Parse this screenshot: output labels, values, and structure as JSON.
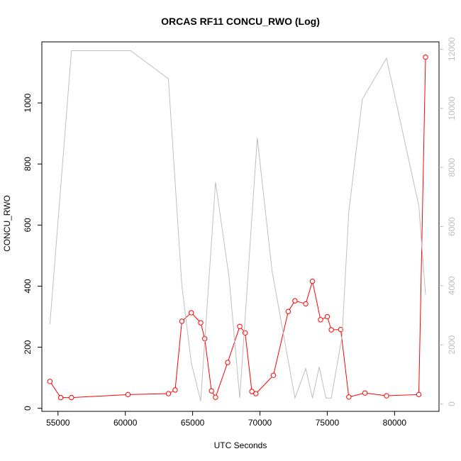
{
  "chart_data": {
    "type": "line",
    "title": "ORCAS RF11 CONCU_RWO (Log)",
    "xlabel": "UTC Seconds",
    "ylabel": "CONCU_RWO",
    "xlim": [
      53800,
      83300
    ],
    "ylim": [
      -10,
      1200
    ],
    "y2lim": [
      -250,
      12250
    ],
    "x_ticks": [
      55000,
      60000,
      65000,
      70000,
      75000,
      80000
    ],
    "y_ticks": [
      0,
      200,
      400,
      600,
      800,
      1000
    ],
    "y2_ticks": [
      0,
      2000,
      4000,
      6000,
      8000,
      10000,
      12000
    ],
    "colors": {
      "primary": "#ff0000",
      "secondary": "#bebebe"
    },
    "series": [
      {
        "axis": "left",
        "color": "#ff0000",
        "points": [
          [
            54400,
            88
          ],
          [
            55200,
            35
          ],
          [
            56000,
            35
          ],
          [
            60200,
            45
          ],
          [
            63200,
            48
          ],
          [
            63700,
            60
          ],
          [
            64200,
            285
          ],
          [
            64900,
            313
          ],
          [
            65600,
            280
          ],
          [
            65900,
            228
          ],
          [
            66400,
            57
          ],
          [
            66700,
            36
          ],
          [
            67600,
            150
          ],
          [
            68500,
            268
          ],
          [
            68900,
            247
          ],
          [
            69400,
            55
          ],
          [
            69700,
            48
          ],
          [
            71000,
            108
          ],
          [
            72100,
            317
          ],
          [
            72600,
            352
          ],
          [
            73400,
            342
          ],
          [
            73900,
            416
          ],
          [
            74500,
            290
          ],
          [
            75000,
            300
          ],
          [
            75300,
            257
          ],
          [
            76000,
            258
          ],
          [
            76600,
            37
          ],
          [
            77800,
            50
          ],
          [
            79400,
            41
          ],
          [
            81800,
            45
          ],
          [
            82300,
            1150
          ]
        ]
      },
      {
        "axis": "right",
        "color": "#bebebe",
        "points": [
          [
            54400,
            2700
          ],
          [
            56000,
            11950
          ],
          [
            60400,
            11950
          ],
          [
            63200,
            11000
          ],
          [
            64200,
            4000
          ],
          [
            64900,
            1400
          ],
          [
            65600,
            100
          ],
          [
            66700,
            7500
          ],
          [
            67700,
            4300
          ],
          [
            68500,
            200
          ],
          [
            69800,
            9000
          ],
          [
            70900,
            4500
          ],
          [
            72600,
            200
          ],
          [
            73400,
            1200
          ],
          [
            73900,
            200
          ],
          [
            74400,
            1250
          ],
          [
            74900,
            200
          ],
          [
            75300,
            200
          ],
          [
            76100,
            2300
          ],
          [
            76600,
            6500
          ],
          [
            77600,
            10300
          ],
          [
            79400,
            11700
          ],
          [
            81800,
            6700
          ],
          [
            82300,
            3700
          ]
        ]
      }
    ]
  }
}
